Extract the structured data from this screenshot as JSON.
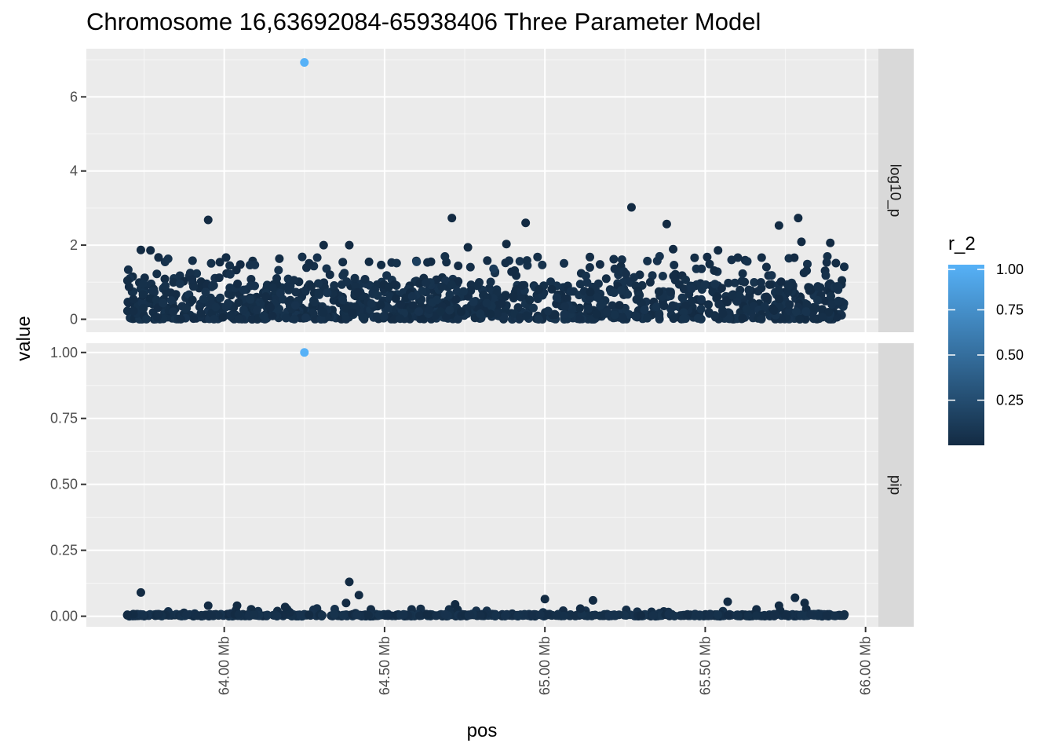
{
  "chart_data": {
    "type": "scatter",
    "title": "Chromosome 16,63692084-65938406 Three Parameter Model",
    "xlabel": "pos",
    "ylabel": "value",
    "xlim": [
      63.57,
      66.04
    ],
    "x_unit": "Mb",
    "x_ticks": [
      64.0,
      64.5,
      65.0,
      65.5,
      66.0
    ],
    "x_tick_labels": [
      "64.00 Mb",
      "64.50 Mb",
      "65.00 Mb",
      "65.50 Mb",
      "66.00 Mb"
    ],
    "grid": true,
    "facets": [
      {
        "strip": "log10_p",
        "ylim": [
          -0.35,
          7.3
        ],
        "y_ticks": [
          0,
          2,
          4,
          6
        ],
        "y_tick_labels": [
          "0",
          "2",
          "4",
          "6"
        ],
        "notable_points": [
          {
            "x": 64.25,
            "y": 6.93,
            "r_2": 1.0
          },
          {
            "x": 63.95,
            "y": 2.68,
            "r_2": 0.0
          },
          {
            "x": 64.71,
            "y": 2.73,
            "r_2": 0.0
          },
          {
            "x": 64.94,
            "y": 2.6,
            "r_2": 0.0
          },
          {
            "x": 65.27,
            "y": 3.02,
            "r_2": 0.0
          },
          {
            "x": 65.38,
            "y": 2.57,
            "r_2": 0.0
          },
          {
            "x": 65.73,
            "y": 2.53,
            "r_2": 0.0
          },
          {
            "x": 65.79,
            "y": 2.73,
            "r_2": 0.0
          },
          {
            "x": 65.89,
            "y": 2.06,
            "r_2": 0.0
          },
          {
            "x": 64.31,
            "y": 2.0,
            "r_2": 0.0
          },
          {
            "x": 64.39,
            "y": 2.0,
            "r_2": 0.0
          },
          {
            "x": 64.88,
            "y": 2.03,
            "r_2": 0.0
          },
          {
            "x": 65.8,
            "y": 2.09,
            "r_2": 0.0
          },
          {
            "x": 63.74,
            "y": 1.87,
            "r_2": 0.0
          },
          {
            "x": 63.77,
            "y": 1.86,
            "r_2": 0.0
          },
          {
            "x": 64.76,
            "y": 1.94,
            "r_2": 0.0
          },
          {
            "x": 65.4,
            "y": 1.89,
            "r_2": 0.0
          },
          {
            "x": 65.54,
            "y": 1.86,
            "r_2": 0.0
          },
          {
            "x": 64.6,
            "y": 1.55,
            "r_2": 0.15
          },
          {
            "x": 64.84,
            "y": 1.36,
            "r_2": 0.12
          }
        ]
      },
      {
        "strip": "pip",
        "ylim": [
          -0.04,
          1.035
        ],
        "y_ticks": [
          0.0,
          0.25,
          0.5,
          0.75,
          1.0
        ],
        "y_tick_labels": [
          "0.00",
          "0.25",
          "0.50",
          "0.75",
          "1.00"
        ],
        "notable_points": [
          {
            "x": 64.25,
            "y": 1.0,
            "r_2": 1.0
          },
          {
            "x": 63.74,
            "y": 0.09,
            "r_2": 0.0
          },
          {
            "x": 64.39,
            "y": 0.13,
            "r_2": 0.0
          },
          {
            "x": 64.42,
            "y": 0.08,
            "r_2": 0.0
          },
          {
            "x": 64.38,
            "y": 0.05,
            "r_2": 0.0
          },
          {
            "x": 65.78,
            "y": 0.07,
            "r_2": 0.0
          },
          {
            "x": 65.81,
            "y": 0.05,
            "r_2": 0.0
          },
          {
            "x": 65.0,
            "y": 0.065,
            "r_2": 0.0
          },
          {
            "x": 65.15,
            "y": 0.06,
            "r_2": 0.0
          },
          {
            "x": 65.57,
            "y": 0.055,
            "r_2": 0.0
          },
          {
            "x": 63.95,
            "y": 0.04,
            "r_2": 0.0
          },
          {
            "x": 64.04,
            "y": 0.04,
            "r_2": 0.0
          },
          {
            "x": 64.19,
            "y": 0.035,
            "r_2": 0.0
          },
          {
            "x": 64.72,
            "y": 0.045,
            "r_2": 0.0
          },
          {
            "x": 65.73,
            "y": 0.04,
            "r_2": 0.0
          }
        ]
      }
    ],
    "color_scale": {
      "name": "r_2",
      "low": "#132B43",
      "high": "#56B1F7",
      "ticks": [
        0.25,
        0.5,
        0.75,
        1.0
      ],
      "tick_labels": [
        "0.25",
        "0.50",
        "0.75",
        "1.00"
      ]
    }
  }
}
